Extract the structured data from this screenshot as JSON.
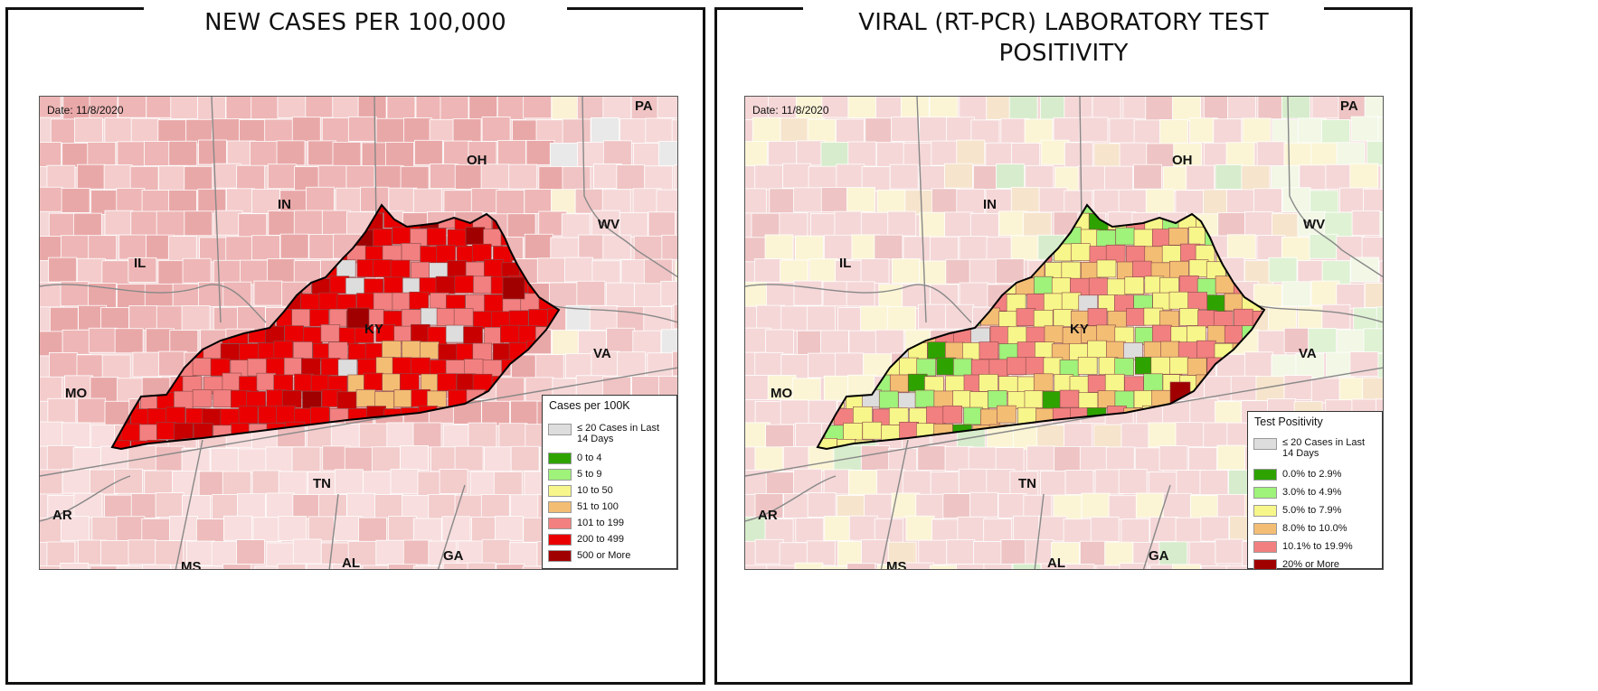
{
  "left": {
    "title": "NEW CASES PER 100,000",
    "date": "Date: 11/8/2020",
    "legend": {
      "title": "Cases per 100K",
      "items": [
        {
          "label": "≤ 20 Cases in Last",
          "label2": "14 Days",
          "color": "#dddddd"
        },
        {
          "label": "0 to 4",
          "color": "#2ea300"
        },
        {
          "label": "5 to 9",
          "color": "#9ff27a"
        },
        {
          "label": "10 to 50",
          "color": "#f7f68a"
        },
        {
          "label": "51 to 100",
          "color": "#f3bd74"
        },
        {
          "label": "101 to 199",
          "color": "#f28080"
        },
        {
          "label": "200 to 499",
          "color": "#ea0000"
        },
        {
          "label": "500 or More",
          "color": "#a00000"
        }
      ]
    }
  },
  "right": {
    "title": "VIRAL (RT-PCR) LABORATORY TEST POSITIVITY",
    "date": "Date: 11/8/2020",
    "legend": {
      "title": "Test Positivity",
      "items": [
        {
          "label": "≤ 20 Cases in Last",
          "label2": "14 Days",
          "color": "#dddddd"
        },
        {
          "label": "0.0% to 2.9%",
          "color": "#2ea300"
        },
        {
          "label": "3.0% to 4.9%",
          "color": "#9ff27a"
        },
        {
          "label": "5.0% to 7.9%",
          "color": "#f7f68a"
        },
        {
          "label": "8.0% to 10.0%",
          "color": "#f3bd74"
        },
        {
          "label": "10.1% to 19.9%",
          "color": "#f28080"
        },
        {
          "label": "20% or More",
          "color": "#a00000"
        }
      ]
    }
  },
  "states": {
    "PA": "PA",
    "OH": "OH",
    "IN": "IN",
    "IL": "IL",
    "WV": "WV",
    "KY": "KY",
    "VA": "VA",
    "MO": "MO",
    "TN": "TN",
    "AR": "AR",
    "MS": "MS",
    "AL": "AL",
    "GA": "GA"
  },
  "colors": {
    "base_left": "#f2c4c4",
    "base_right": "#f6dcdc",
    "state_border": "#888888",
    "ky_outline": "#000000"
  }
}
